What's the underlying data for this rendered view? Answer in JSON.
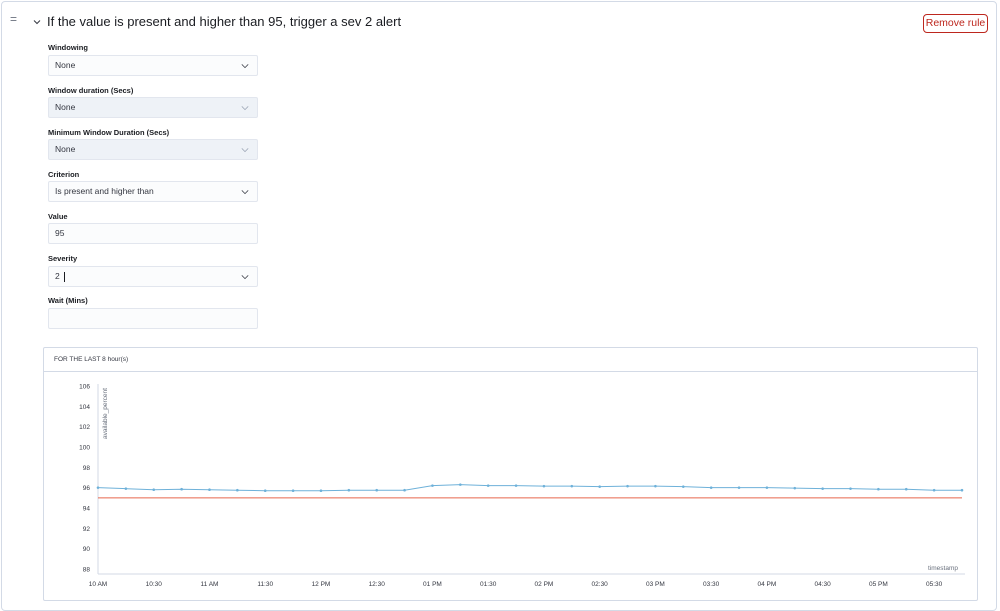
{
  "rule": {
    "drag_handle": "=",
    "title": "If the value is present and higher than 95, trigger a sev 2 alert",
    "remove_label": "Remove rule"
  },
  "fields": {
    "windowing": {
      "label": "Windowing",
      "value": "None"
    },
    "window_duration": {
      "label": "Window duration (Secs)",
      "value": "None"
    },
    "min_window_duration": {
      "label": "Minimum Window Duration (Secs)",
      "value": "None"
    },
    "criterion": {
      "label": "Criterion",
      "value": "Is present and higher than"
    },
    "value": {
      "label": "Value",
      "value": "95"
    },
    "severity": {
      "label": "Severity",
      "value": "2"
    },
    "wait": {
      "label": "Wait (Mins)",
      "value": ""
    }
  },
  "colors": {
    "accent_red": "#bd271e",
    "series": "#6eb1d9",
    "threshold": "#e7664c"
  },
  "icons": {
    "collapse": "chevron-down-icon",
    "select": "chevron-down-icon"
  },
  "chart_data": {
    "type": "line",
    "panel_title": "FOR THE LAST 8 hour(s)",
    "ylabel": "available_percent",
    "xlabel": "timestamp",
    "ylim": [
      88,
      106
    ],
    "yticks": [
      88,
      90,
      92,
      94,
      96,
      98,
      100,
      102,
      104,
      106
    ],
    "xlim": [
      "10:00",
      "17:45"
    ],
    "xticks": [
      {
        "t": "10:00",
        "label": "10 AM"
      },
      {
        "t": "10:30",
        "label": "10:30"
      },
      {
        "t": "11:00",
        "label": "11 AM"
      },
      {
        "t": "11:30",
        "label": "11:30"
      },
      {
        "t": "12:00",
        "label": "12 PM"
      },
      {
        "t": "12:30",
        "label": "12:30"
      },
      {
        "t": "13:00",
        "label": "01 PM"
      },
      {
        "t": "13:30",
        "label": "01:30"
      },
      {
        "t": "14:00",
        "label": "02 PM"
      },
      {
        "t": "14:30",
        "label": "02:30"
      },
      {
        "t": "15:00",
        "label": "03 PM"
      },
      {
        "t": "15:30",
        "label": "03:30"
      },
      {
        "t": "16:00",
        "label": "04 PM"
      },
      {
        "t": "16:30",
        "label": "04:30"
      },
      {
        "t": "17:00",
        "label": "05 PM"
      },
      {
        "t": "17:30",
        "label": "05:30"
      }
    ],
    "series": [
      {
        "x": [
          "10:00",
          "10:15",
          "10:30",
          "10:45",
          "11:00",
          "11:15",
          "11:30",
          "11:45",
          "12:00",
          "12:15",
          "12:30",
          "12:45",
          "13:00",
          "13:15",
          "13:30",
          "13:45",
          "14:00",
          "14:15",
          "14:30",
          "14:45",
          "15:00",
          "15:15",
          "15:30",
          "15:45",
          "16:00",
          "16:15",
          "16:30",
          "16:45",
          "17:00",
          "17:15",
          "17:30",
          "17:45"
        ],
        "values": [
          96.0,
          95.9,
          95.8,
          95.85,
          95.8,
          95.75,
          95.7,
          95.7,
          95.7,
          95.75,
          95.75,
          95.75,
          96.2,
          96.3,
          96.2,
          96.2,
          96.15,
          96.15,
          96.1,
          96.15,
          96.15,
          96.1,
          96.0,
          96.0,
          96.0,
          95.95,
          95.9,
          95.9,
          95.85,
          95.85,
          95.75,
          95.75
        ]
      }
    ],
    "threshold": 95
  }
}
